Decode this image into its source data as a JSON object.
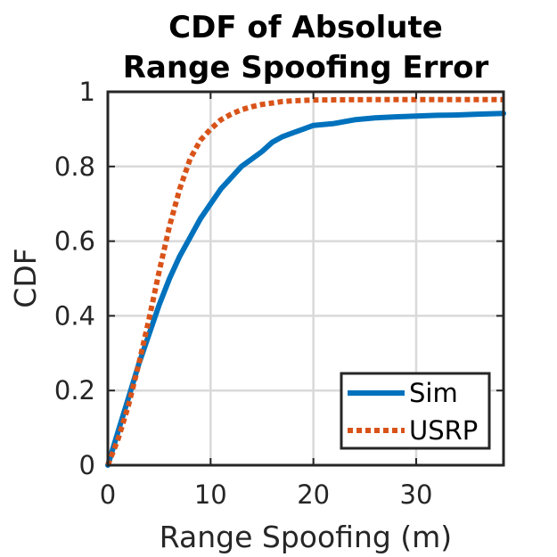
{
  "chart_data": {
    "type": "line",
    "title": [
      "CDF of Absolute",
      "Range Spoofing Error"
    ],
    "xlabel": "Range Spoofing (m)",
    "ylabel": "CDF",
    "xlim": [
      0,
      38.5
    ],
    "ylim": [
      0,
      1
    ],
    "xticks": [
      0,
      10,
      20,
      30
    ],
    "xtick_labels": [
      "0",
      "10",
      "20",
      "30"
    ],
    "yticks": [
      0,
      0.2,
      0.4,
      0.6,
      0.8,
      1
    ],
    "ytick_labels": [
      "0",
      "0.2",
      "0.4",
      "0.6",
      "0.8",
      "1"
    ],
    "grid": true,
    "legend_position": "bottom-right",
    "series": [
      {
        "name": "Sim",
        "color": "#0072BD",
        "style": "solid",
        "x": [
          0,
          1,
          2,
          3,
          4,
          5,
          6,
          7,
          8,
          9,
          10,
          11,
          12,
          13,
          14,
          15,
          16,
          17,
          18,
          19,
          20,
          22,
          24,
          26,
          28,
          30,
          32,
          34,
          36,
          38.5
        ],
        "y": [
          0,
          0.09,
          0.18,
          0.27,
          0.35,
          0.43,
          0.5,
          0.56,
          0.61,
          0.66,
          0.7,
          0.74,
          0.77,
          0.8,
          0.82,
          0.84,
          0.865,
          0.88,
          0.89,
          0.9,
          0.91,
          0.915,
          0.925,
          0.93,
          0.933,
          0.935,
          0.937,
          0.938,
          0.94,
          0.942
        ]
      },
      {
        "name": "USRP",
        "color": "#D95319",
        "style": "dotted",
        "x": [
          0,
          1,
          2,
          3,
          4,
          5,
          6,
          7,
          8,
          9,
          10,
          11,
          12,
          13,
          14,
          15,
          16,
          17,
          18,
          20,
          25,
          30,
          38.5
        ],
        "y": [
          0,
          0.07,
          0.16,
          0.27,
          0.39,
          0.52,
          0.64,
          0.74,
          0.82,
          0.87,
          0.9,
          0.925,
          0.94,
          0.952,
          0.96,
          0.966,
          0.97,
          0.974,
          0.976,
          0.978,
          0.979,
          0.979,
          0.979
        ]
      }
    ]
  }
}
